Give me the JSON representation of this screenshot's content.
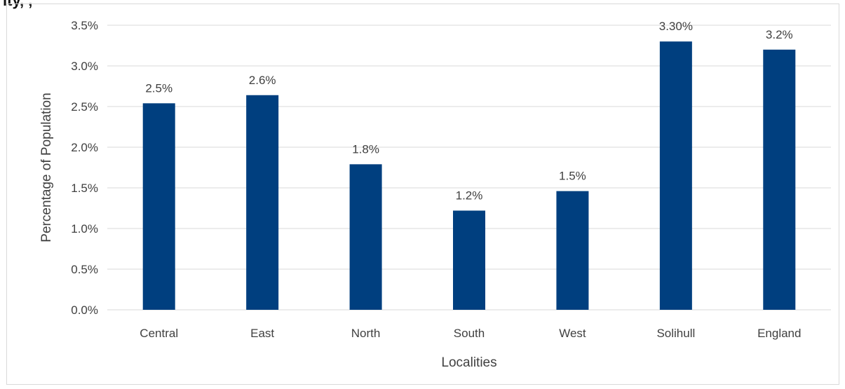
{
  "title_fragment": "ity, ,",
  "chart_data": {
    "type": "bar",
    "categories": [
      "Central",
      "East",
      "North",
      "South",
      "West",
      "Solihull",
      "England"
    ],
    "values": [
      2.54,
      2.64,
      1.79,
      1.22,
      1.46,
      3.3,
      3.2
    ],
    "data_labels": [
      "2.5%",
      "2.6%",
      "1.8%",
      "1.2%",
      "1.5%",
      "3.30%",
      "3.2%"
    ],
    "xlabel": "Localities",
    "ylabel": "Percentage of Population",
    "ylim": [
      0,
      3.5
    ],
    "y_ticks": [
      0,
      0.5,
      1.0,
      1.5,
      2.0,
      2.5,
      3.0,
      3.5
    ],
    "y_tick_labels": [
      "0.0%",
      "0.5%",
      "1.0%",
      "1.5%",
      "2.0%",
      "2.5%",
      "3.0%",
      "3.5%"
    ],
    "grid": true,
    "bar_color": "#003f7f",
    "grid_color": "#d9d9d9",
    "legend": "none"
  }
}
